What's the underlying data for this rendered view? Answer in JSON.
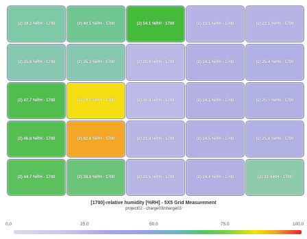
{
  "grid": {
    "cells": [
      {
        "label": "(2) 39.3 %RH - 1700",
        "color": "#7fc9a8"
      },
      {
        "label": "(2) 40.5 %RH - 1700",
        "color": "#6fc690"
      },
      {
        "label": "(2) 54.1 %RH - 1700",
        "color": "#45bb3c"
      },
      {
        "label": "(2) 23.1 %RH - 1700",
        "color": "#b6b4e4"
      },
      {
        "label": "(2) 23.1 %RH - 1700",
        "color": "#b6b4e4"
      },
      {
        "label": "(2) 35.8 %RH - 1700",
        "color": "#86c8b2"
      },
      {
        "label": "(2) 35.3 %RH - 1700",
        "color": "#86c8b2"
      },
      {
        "label": "(2) 20.4 %RH - 1700",
        "color": "#bbb8e6"
      },
      {
        "label": "(2) 24.1 %RH - 1700",
        "color": "#b3b1e3"
      },
      {
        "label": "(2) 25.4 %RH - 1700",
        "color": "#b1b0e3"
      },
      {
        "label": "(2) 47.7 %RH - 1700",
        "color": "#52bd4f"
      },
      {
        "label": "(2) 79.1 %RH - 1700",
        "color": "#f5df12"
      },
      {
        "label": "(2) 16.8 %RH - 1700",
        "color": "#bcbae7"
      },
      {
        "label": "(2) 24.1 %RH - 1700",
        "color": "#b3b1e3"
      },
      {
        "label": "(2) 25.7 %RH - 1700",
        "color": "#b1b0e3"
      },
      {
        "label": "(2) 46.8 %RH - 1700",
        "color": "#55bf52"
      },
      {
        "label": "(2) 82.8 %RH - 1700",
        "color": "#f4a726"
      },
      {
        "label": "(2) 21.8 %RH - 1700",
        "color": "#b8b6e5"
      },
      {
        "label": "(2) 24.5 %RH - 1700",
        "color": "#b3b1e3"
      },
      {
        "label": "(2) 25.8 %RH - 1700",
        "color": "#b1b0e3"
      },
      {
        "label": "(2) 44.7 %RH - 1700",
        "color": "#5ac15d"
      },
      {
        "label": "(2) 39.8 %RH - 1700",
        "color": "#6bc377"
      },
      {
        "label": "(2) 21.5 %RH - 1700",
        "color": "#b8b6e5"
      },
      {
        "label": "(2) 24.4 %RH - 1700",
        "color": "#b3b1e3"
      },
      {
        "label": "(2) 33 %RH - 1700",
        "color": "#8fcbaa"
      }
    ]
  },
  "title": "[1700]-relative humidity [%RH] - 5X5 Grid Measurement",
  "subtitle": "project02 - charge03/charge03",
  "scale": {
    "ticks": [
      "0,0",
      "25,0",
      "50,0",
      "75,0",
      "100,0"
    ],
    "min": 0,
    "max": 100
  }
}
